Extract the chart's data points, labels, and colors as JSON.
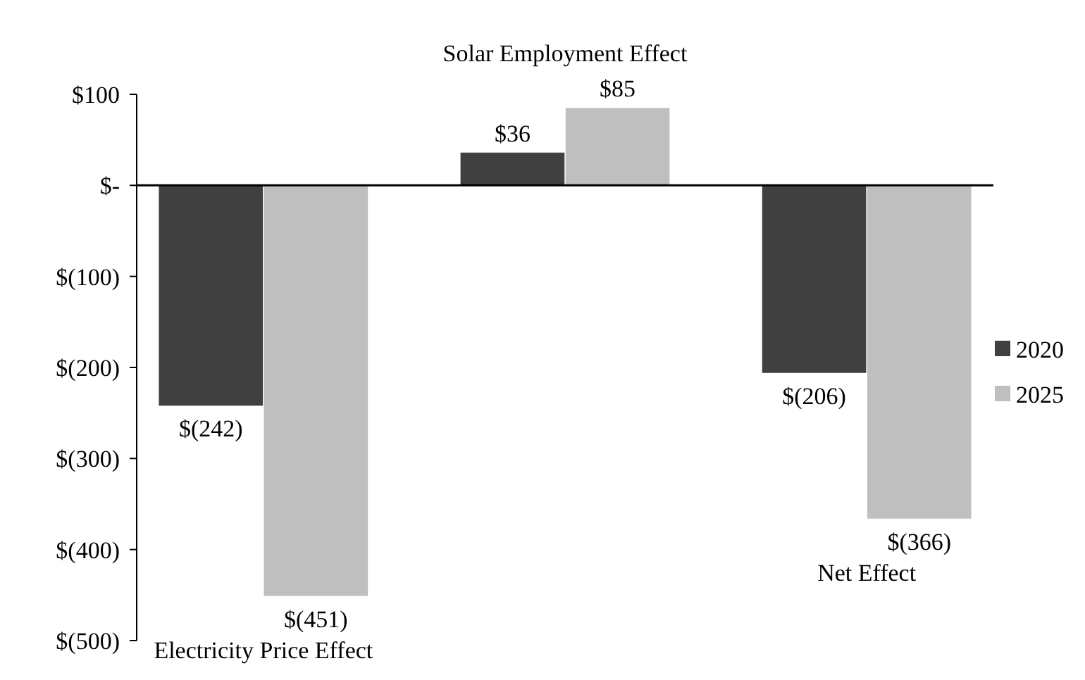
{
  "chart_data": {
    "type": "bar",
    "categories": [
      "Electricity Price Effect",
      "Solar Employment Effect",
      "Net Effect"
    ],
    "series": [
      {
        "name": "2020",
        "color": "#404040",
        "values": [
          -242,
          36,
          -206
        ],
        "value_labels": [
          "$(242)",
          "$36",
          "$(206)"
        ]
      },
      {
        "name": "2025",
        "color": "#bfbfbf",
        "values": [
          -451,
          85,
          -366
        ],
        "value_labels": [
          "$(451)",
          "$85",
          "$(366)"
        ]
      }
    ],
    "ylim": [
      -500,
      100
    ],
    "yticks": [
      {
        "value": -500,
        "label": "$(500)"
      },
      {
        "value": -400,
        "label": "$(400)"
      },
      {
        "value": -300,
        "label": "$(300)"
      },
      {
        "value": -200,
        "label": "$(200)"
      },
      {
        "value": -100,
        "label": "$(100)"
      },
      {
        "value": 0,
        "label": "$-"
      },
      {
        "value": 100,
        "label": "$100"
      }
    ],
    "legend": "right"
  }
}
